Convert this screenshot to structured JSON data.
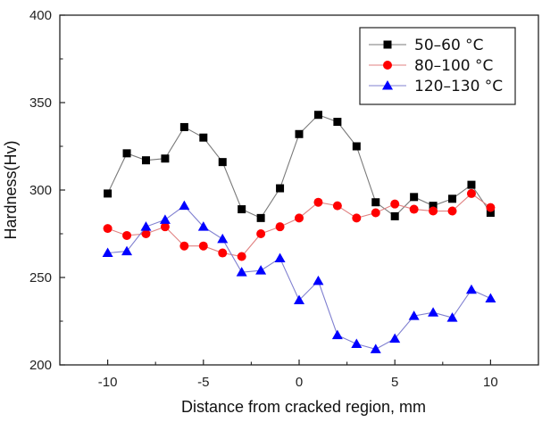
{
  "chart_data": {
    "type": "line",
    "title": "",
    "xlabel": "Distance from cracked region, mm",
    "ylabel": "Hardness(Hv)",
    "xlim": [
      -12.5,
      12.5
    ],
    "ylim": [
      200,
      400
    ],
    "xticks": [
      -10,
      -5,
      0,
      5,
      10
    ],
    "xtick_labels": [
      "-10",
      "-5",
      "0",
      "5",
      "10"
    ],
    "xminor": [
      -7.5,
      -2.5,
      2.5,
      7.5
    ],
    "yticks": [
      200,
      250,
      300,
      350,
      400
    ],
    "ytick_labels": [
      "200",
      "250",
      "300",
      "350",
      "400"
    ],
    "yminor": [
      225,
      275,
      325,
      375
    ],
    "grid": false,
    "legend_position": "top-right",
    "x": [
      -10,
      -9,
      -8,
      -7,
      -6,
      -5,
      -4,
      -3,
      -2,
      -1,
      0,
      1,
      2,
      3,
      4,
      5,
      6,
      7,
      8,
      9,
      10
    ],
    "series": [
      {
        "name": "50–60 °C",
        "color": "#000000",
        "line_color": "#7a7a7a",
        "marker": "square",
        "values": [
          298,
          321,
          317,
          318,
          336,
          330,
          316,
          289,
          284,
          301,
          332,
          343,
          339,
          325,
          293,
          285,
          296,
          291,
          295,
          303,
          287
        ]
      },
      {
        "name": "80–100 °C",
        "color": "#ff0000",
        "line_color": "#e08080",
        "marker": "circle",
        "values": [
          278,
          274,
          275,
          279,
          268,
          268,
          264,
          262,
          275,
          279,
          284,
          293,
          291,
          284,
          287,
          292,
          289,
          288,
          288,
          298,
          290
        ]
      },
      {
        "name": "120–130 °C",
        "color": "#0000ff",
        "line_color": "#8080d0",
        "marker": "triangle",
        "values": [
          264,
          265,
          279,
          283,
          291,
          279,
          272,
          253,
          254,
          261,
          237,
          248,
          217,
          212,
          209,
          215,
          228,
          230,
          227,
          243,
          238
        ]
      }
    ]
  }
}
